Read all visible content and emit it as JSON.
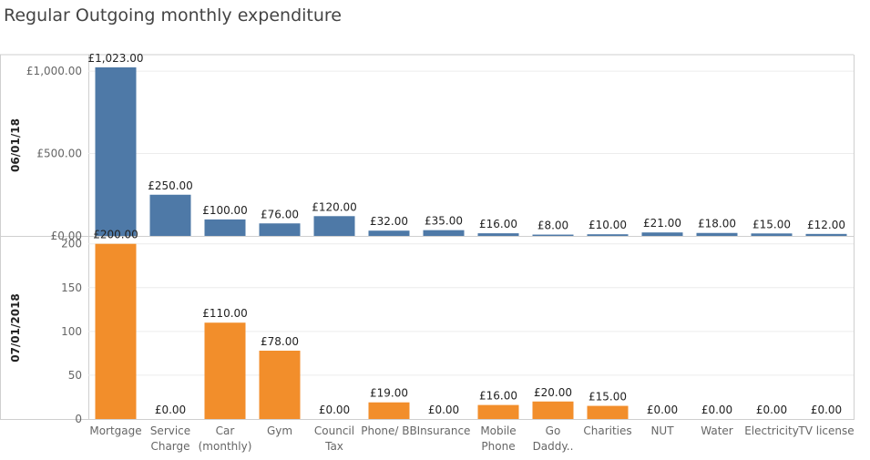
{
  "title": "Regular Outgoing monthly expenditure",
  "colors": {
    "panel1": "#4e79a7",
    "panel2": "#f28e2b"
  },
  "chart_data": {
    "type": "bar",
    "title": "Regular Outgoing monthly expenditure",
    "categories": [
      [
        "Mortgage"
      ],
      [
        "Service",
        "Charge"
      ],
      [
        "Car",
        "(monthly)"
      ],
      [
        "Gym"
      ],
      [
        "Council",
        "Tax"
      ],
      [
        "Phone/ BB"
      ],
      [
        "Insurance"
      ],
      [
        "Mobile",
        "Phone"
      ],
      [
        "Go",
        "Daddy.."
      ],
      [
        "Charities"
      ],
      [
        "NUT"
      ],
      [
        "Water"
      ],
      [
        "Electricity"
      ],
      [
        "TV license"
      ]
    ],
    "panels": [
      {
        "name": "06/01/18",
        "values": [
          1023,
          250,
          100,
          76,
          120,
          32,
          35,
          16,
          8,
          10,
          21,
          18,
          15,
          12
        ],
        "labels": [
          "£1,023.00",
          "£250.00",
          "£100.00",
          "£76.00",
          "£120.00",
          "£32.00",
          "£35.00",
          "£16.00",
          "£8.00",
          "£10.00",
          "£21.00",
          "£18.00",
          "£15.00",
          "£12.00"
        ],
        "ticks": [
          0,
          500,
          1000
        ],
        "tick_labels": [
          "£0.00",
          "£500.00",
          "£1,000.00"
        ],
        "ylim": [
          0,
          1100
        ]
      },
      {
        "name": "07/01/2018",
        "values": [
          200,
          0,
          110,
          78,
          0,
          19,
          0,
          16,
          20,
          15,
          0,
          0,
          0,
          0
        ],
        "labels": [
          "£200.00",
          "£0.00",
          "£110.00",
          "£78.00",
          "£0.00",
          "£19.00",
          "£0.00",
          "£16.00",
          "£20.00",
          "£15.00",
          "£0.00",
          "£0.00",
          "£0.00",
          "£0.00"
        ],
        "ticks": [
          0,
          50,
          100,
          150,
          200
        ],
        "tick_labels": [
          "0",
          "50",
          "100",
          "150",
          "200"
        ],
        "ylim": [
          0,
          208
        ]
      }
    ],
    "grid": true,
    "legend": "none"
  }
}
